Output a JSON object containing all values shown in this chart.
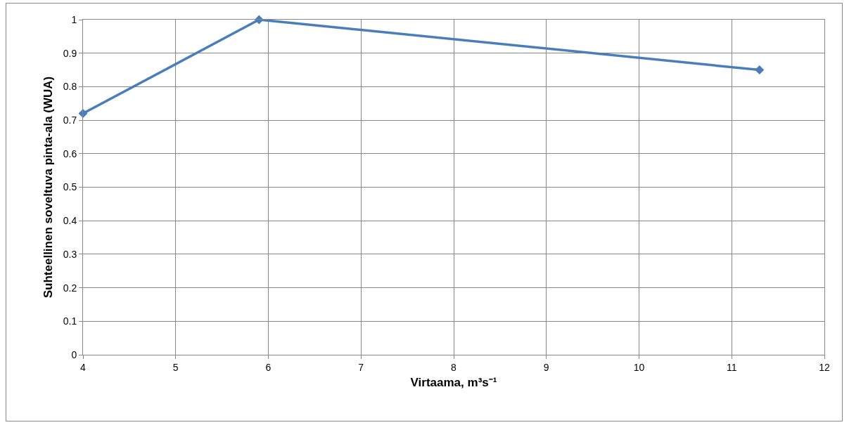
{
  "chart_data": {
    "type": "line",
    "xlabel": "Virtaama, m³s⁻¹",
    "ylabel": "Suhteellinen soveltuva pinta-ala (WUA)",
    "x": [
      4,
      5.9,
      11.3
    ],
    "series": [
      {
        "color": "#4a7ebb",
        "values": [
          0.72,
          1.0,
          0.85
        ]
      }
    ],
    "xlim": [
      4,
      12
    ],
    "xticks": [
      4,
      5,
      6,
      7,
      8,
      9,
      10,
      11,
      12
    ],
    "ylim": [
      0,
      1
    ],
    "yticks": [
      0,
      0.1,
      0.2,
      0.3,
      0.4,
      0.5,
      0.6,
      0.7,
      0.8,
      0.9,
      1
    ],
    "grid": true,
    "legend": false,
    "marker": "diamond",
    "line_style": "solid"
  }
}
